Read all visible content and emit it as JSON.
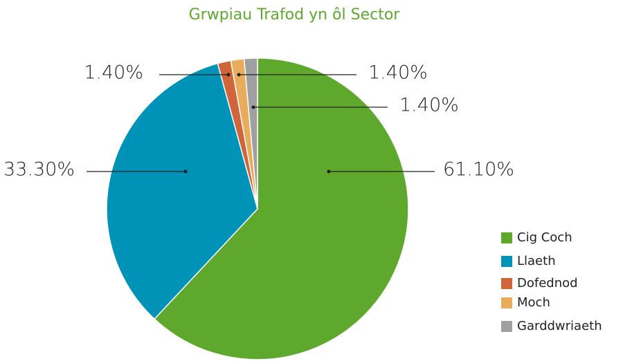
{
  "chart_data": {
    "type": "pie",
    "title": "Grwpiau Trafod yn ôl Sector",
    "categories": [
      "Cig Coch",
      "Llaeth",
      "Dofednod",
      "Moch",
      "Garddwriaeth"
    ],
    "values": [
      61.1,
      33.3,
      1.4,
      1.4,
      1.4
    ],
    "value_labels": [
      "61.10%",
      "33.30%",
      "1.40%",
      "1.40%",
      "1.40%"
    ],
    "colors": [
      "#5fa82e",
      "#0093b8",
      "#d0643a",
      "#e8ad5c",
      "#a0a0a0"
    ],
    "legend": "right"
  }
}
